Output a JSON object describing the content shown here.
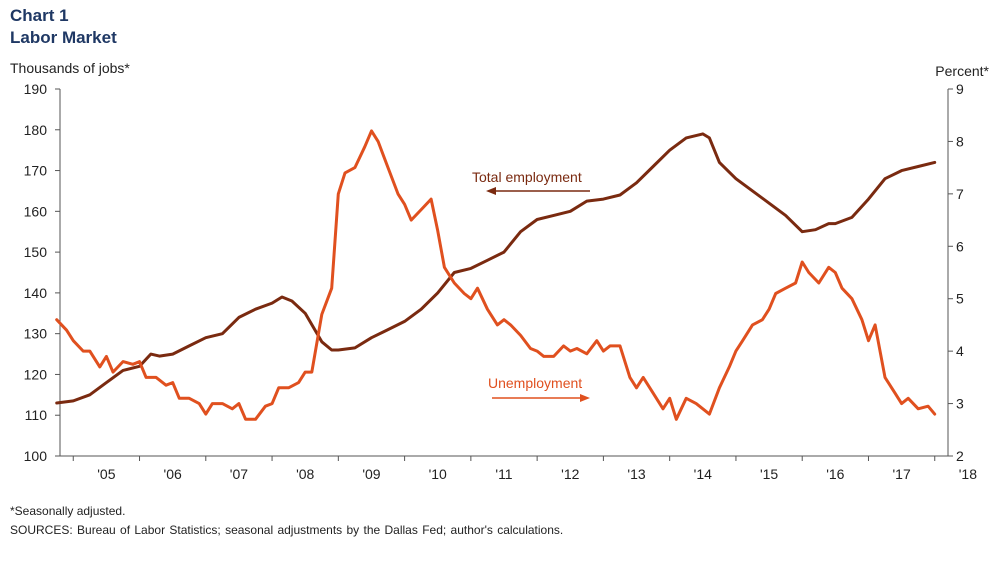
{
  "header": {
    "chart_number": "Chart 1",
    "title": "Labor Market",
    "left_axis_unit": "Thousands of jobs*",
    "right_axis_unit": "Percent*"
  },
  "footer": {
    "footnote": "*Seasonally adjusted.",
    "sources": "SOURCES: Bureau of Labor Statistics; seasonal adjustments by the Dallas Fed; author's calculations."
  },
  "colors": {
    "employment": "#7a2a10",
    "unemployment": "#e0501f",
    "axis": "#555555",
    "text": "#222222"
  },
  "chart_data": {
    "type": "line",
    "grid": false,
    "x_start": 2004.8,
    "x_end": 2018.2,
    "x_ticks": [
      "'05",
      "'06",
      "'07",
      "'08",
      "'09",
      "'10",
      "'11",
      "'12",
      "'13",
      "'14",
      "'15",
      "'16",
      "'17",
      "'18"
    ],
    "y_left": {
      "range": [
        100,
        190
      ],
      "ticks": [
        "100",
        "110",
        "120",
        "130",
        "140",
        "150",
        "160",
        "170",
        "180",
        "190"
      ]
    },
    "y_right": {
      "range": [
        2,
        9
      ],
      "ticks": [
        "2",
        "3",
        "4",
        "5",
        "6",
        "7",
        "8",
        "9"
      ]
    },
    "annotations": [
      {
        "text": "Total employment",
        "series": "employment",
        "arrow": "left"
      },
      {
        "text": "Unemployment",
        "series": "unemployment",
        "arrow": "right"
      }
    ],
    "series": [
      {
        "name": "Total employment",
        "axis": "left",
        "x": [
          2004.75,
          2005.0,
          2005.25,
          2005.5,
          2005.75,
          2006.0,
          2006.17,
          2006.3,
          2006.5,
          2006.75,
          2007.0,
          2007.25,
          2007.5,
          2007.75,
          2008.0,
          2008.15,
          2008.3,
          2008.5,
          2008.75,
          2008.9,
          2009.0,
          2009.25,
          2009.5,
          2009.75,
          2010.0,
          2010.25,
          2010.5,
          2010.75,
          2011.0,
          2011.25,
          2011.5,
          2011.75,
          2012.0,
          2012.25,
          2012.5,
          2012.75,
          2013.0,
          2013.25,
          2013.5,
          2013.75,
          2014.0,
          2014.25,
          2014.5,
          2014.6,
          2014.75,
          2015.0,
          2015.25,
          2015.5,
          2015.75,
          2016.0,
          2016.2,
          2016.4,
          2016.5,
          2016.75,
          2017.0,
          2017.25,
          2017.5,
          2017.75,
          2018.0
        ],
        "values": [
          113,
          113.5,
          115,
          118,
          121,
          122,
          125,
          124.5,
          125,
          127,
          129,
          130,
          134,
          136,
          137.5,
          139,
          138,
          135,
          128,
          126,
          126,
          126.5,
          129,
          131,
          133,
          136,
          140,
          145,
          146,
          148,
          150,
          155,
          158,
          159,
          160,
          162.5,
          163,
          164,
          167,
          171,
          175,
          178,
          179,
          178,
          172,
          168,
          165,
          162,
          159,
          155,
          155.5,
          157,
          157,
          158.5,
          163,
          168,
          170,
          171,
          172
        ]
      },
      {
        "name": "Unemployment",
        "axis": "right",
        "x": [
          2004.75,
          2004.9,
          2005.0,
          2005.15,
          2005.25,
          2005.4,
          2005.5,
          2005.6,
          2005.75,
          2005.9,
          2006.0,
          2006.1,
          2006.25,
          2006.4,
          2006.5,
          2006.6,
          2006.75,
          2006.9,
          2007.0,
          2007.1,
          2007.25,
          2007.4,
          2007.5,
          2007.6,
          2007.75,
          2007.9,
          2008.0,
          2008.1,
          2008.25,
          2008.4,
          2008.5,
          2008.6,
          2008.75,
          2008.9,
          2009.0,
          2009.1,
          2009.25,
          2009.4,
          2009.5,
          2009.6,
          2009.75,
          2009.9,
          2010.0,
          2010.1,
          2010.25,
          2010.4,
          2010.5,
          2010.6,
          2010.75,
          2010.9,
          2011.0,
          2011.1,
          2011.25,
          2011.4,
          2011.5,
          2011.6,
          2011.75,
          2011.9,
          2012.0,
          2012.1,
          2012.25,
          2012.4,
          2012.5,
          2012.6,
          2012.75,
          2012.9,
          2013.0,
          2013.1,
          2013.25,
          2013.4,
          2013.5,
          2013.6,
          2013.75,
          2013.9,
          2014.0,
          2014.1,
          2014.25,
          2014.4,
          2014.5,
          2014.6,
          2014.75,
          2014.9,
          2015.0,
          2015.1,
          2015.25,
          2015.4,
          2015.5,
          2015.6,
          2015.75,
          2015.9,
          2016.0,
          2016.1,
          2016.25,
          2016.4,
          2016.5,
          2016.6,
          2016.75,
          2016.9,
          2017.0,
          2017.1,
          2017.25,
          2017.4,
          2017.5,
          2017.6,
          2017.75,
          2017.9,
          2018.0
        ],
        "values": [
          4.6,
          4.4,
          4.2,
          4.0,
          4.0,
          3.7,
          3.9,
          3.6,
          3.8,
          3.75,
          3.8,
          3.5,
          3.5,
          3.35,
          3.4,
          3.1,
          3.1,
          3.0,
          2.8,
          3.0,
          3.0,
          2.9,
          3.0,
          2.7,
          2.7,
          2.95,
          3.0,
          3.3,
          3.3,
          3.4,
          3.6,
          3.6,
          4.7,
          5.2,
          7.0,
          7.4,
          7.5,
          7.9,
          8.2,
          8.0,
          7.5,
          7.0,
          6.8,
          6.5,
          6.7,
          6.9,
          6.3,
          5.6,
          5.3,
          5.1,
          5.0,
          5.2,
          4.8,
          4.5,
          4.6,
          4.5,
          4.3,
          4.05,
          4.0,
          3.9,
          3.9,
          4.1,
          4.0,
          4.05,
          3.95,
          4.2,
          4.0,
          4.1,
          4.1,
          3.5,
          3.3,
          3.5,
          3.2,
          2.9,
          3.1,
          2.7,
          3.1,
          3.0,
          2.9,
          2.8,
          3.3,
          3.7,
          4.0,
          4.2,
          4.5,
          4.6,
          4.8,
          5.1,
          5.2,
          5.3,
          5.7,
          5.5,
          5.3,
          5.6,
          5.5,
          5.2,
          5.0,
          4.6,
          4.2,
          4.5,
          3.5,
          3.2,
          3.0,
          3.1,
          2.9,
          2.95,
          2.8
        ]
      }
    ]
  }
}
